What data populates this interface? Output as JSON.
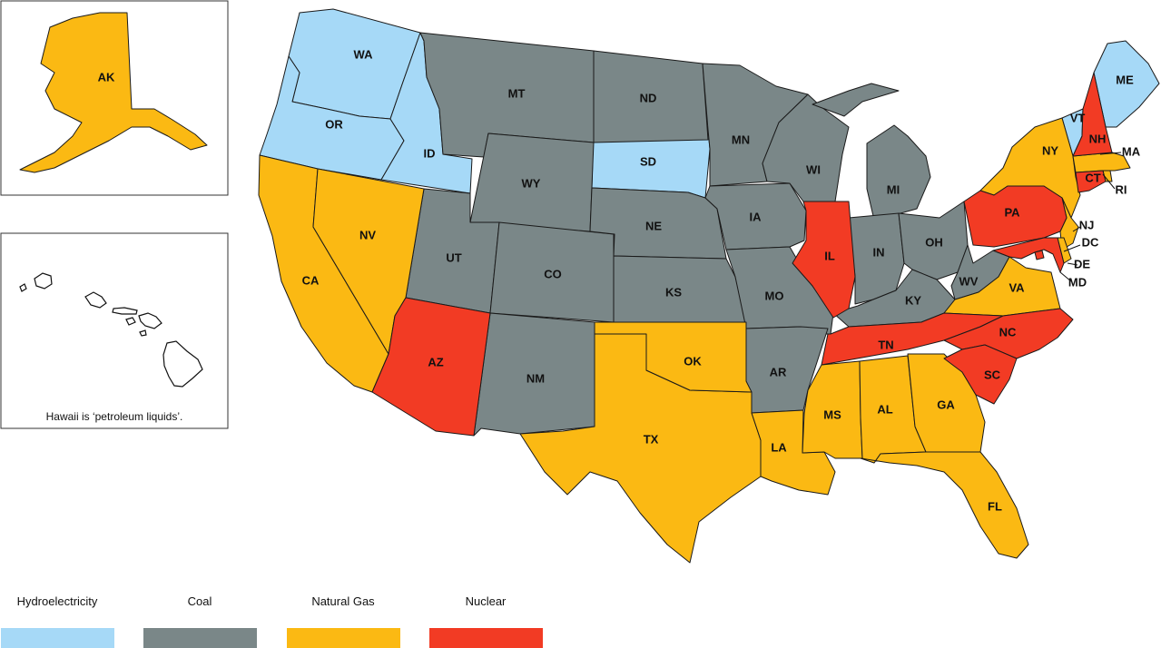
{
  "colors": {
    "hydro": "#a6d9f7",
    "coal": "#7a8788",
    "gas": "#fbb913",
    "nuclear": "#f23b24"
  },
  "legend": [
    {
      "key": "hydro",
      "label": "Hydroelectricity"
    },
    {
      "key": "coal",
      "label": "Coal"
    },
    {
      "key": "gas",
      "label": "Natural Gas"
    },
    {
      "key": "nuclear",
      "label": "Nuclear"
    }
  ],
  "hawaii_note": "Hawaii is ‘petroleum liquids’.",
  "states": [
    {
      "abbr": "WA",
      "source": "hydro"
    },
    {
      "abbr": "OR",
      "source": "hydro"
    },
    {
      "abbr": "ID",
      "source": "hydro"
    },
    {
      "abbr": "SD",
      "source": "hydro"
    },
    {
      "abbr": "VT",
      "source": "hydro"
    },
    {
      "abbr": "ME",
      "source": "hydro"
    },
    {
      "abbr": "MT",
      "source": "coal"
    },
    {
      "abbr": "ND",
      "source": "coal"
    },
    {
      "abbr": "WY",
      "source": "coal"
    },
    {
      "abbr": "UT",
      "source": "coal"
    },
    {
      "abbr": "CO",
      "source": "coal"
    },
    {
      "abbr": "NE",
      "source": "coal"
    },
    {
      "abbr": "KS",
      "source": "coal"
    },
    {
      "abbr": "NM",
      "source": "coal"
    },
    {
      "abbr": "MN",
      "source": "coal"
    },
    {
      "abbr": "IA",
      "source": "coal"
    },
    {
      "abbr": "MO",
      "source": "coal"
    },
    {
      "abbr": "AR",
      "source": "coal"
    },
    {
      "abbr": "WI",
      "source": "coal"
    },
    {
      "abbr": "MI",
      "source": "coal"
    },
    {
      "abbr": "IN",
      "source": "coal"
    },
    {
      "abbr": "OH",
      "source": "coal"
    },
    {
      "abbr": "KY",
      "source": "coal"
    },
    {
      "abbr": "WV",
      "source": "coal"
    },
    {
      "abbr": "CA",
      "source": "gas"
    },
    {
      "abbr": "NV",
      "source": "gas"
    },
    {
      "abbr": "TX",
      "source": "gas"
    },
    {
      "abbr": "OK",
      "source": "gas"
    },
    {
      "abbr": "LA",
      "source": "gas"
    },
    {
      "abbr": "MS",
      "source": "gas"
    },
    {
      "abbr": "AL",
      "source": "gas"
    },
    {
      "abbr": "GA",
      "source": "gas"
    },
    {
      "abbr": "FL",
      "source": "gas"
    },
    {
      "abbr": "VA",
      "source": "gas"
    },
    {
      "abbr": "NY",
      "source": "gas"
    },
    {
      "abbr": "NJ",
      "source": "gas"
    },
    {
      "abbr": "DE",
      "source": "gas"
    },
    {
      "abbr": "MA",
      "source": "gas"
    },
    {
      "abbr": "RI",
      "source": "gas"
    },
    {
      "abbr": "AK",
      "source": "gas"
    },
    {
      "abbr": "AZ",
      "source": "nuclear"
    },
    {
      "abbr": "IL",
      "source": "nuclear"
    },
    {
      "abbr": "TN",
      "source": "nuclear"
    },
    {
      "abbr": "NC",
      "source": "nuclear"
    },
    {
      "abbr": "SC",
      "source": "nuclear"
    },
    {
      "abbr": "PA",
      "source": "nuclear"
    },
    {
      "abbr": "MD",
      "source": "nuclear"
    },
    {
      "abbr": "NH",
      "source": "nuclear"
    },
    {
      "abbr": "CT",
      "source": "nuclear"
    },
    {
      "abbr": "DC",
      "source": "nuclear"
    },
    {
      "abbr": "HI",
      "source": "none"
    }
  ]
}
